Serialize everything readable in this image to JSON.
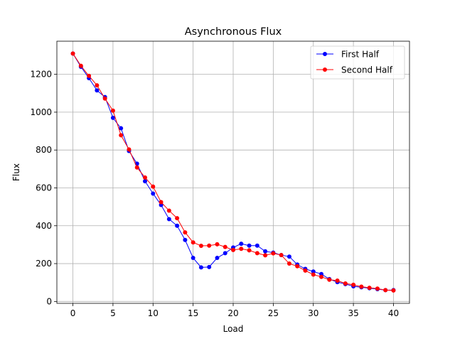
{
  "chart_data": {
    "type": "line",
    "title": "Asynchronous Flux",
    "xlabel": "Load",
    "ylabel": "Flux",
    "xlim": [
      -2,
      42
    ],
    "ylim": [
      -10,
      1375
    ],
    "xticks": [
      0,
      5,
      10,
      15,
      20,
      25,
      30,
      35,
      40
    ],
    "yticks": [
      0,
      200,
      400,
      600,
      800,
      1000,
      1200
    ],
    "grid": true,
    "legend_position": "top-right",
    "x": [
      0,
      1,
      2,
      3,
      4,
      5,
      6,
      7,
      8,
      9,
      10,
      11,
      12,
      13,
      14,
      15,
      16,
      17,
      18,
      19,
      20,
      21,
      22,
      23,
      24,
      25,
      26,
      27,
      28,
      29,
      30,
      31,
      32,
      33,
      34,
      35,
      36,
      37,
      38,
      39,
      40
    ],
    "series": [
      {
        "name": "First Half",
        "color": "#0000ff",
        "marker": "circle",
        "values": [
          1310,
          1240,
          1180,
          1115,
          1080,
          970,
          915,
          795,
          728,
          635,
          570,
          510,
          435,
          400,
          325,
          230,
          180,
          182,
          230,
          255,
          285,
          305,
          295,
          295,
          265,
          258,
          245,
          237,
          195,
          172,
          158,
          145,
          118,
          102,
          92,
          80,
          75,
          70,
          65,
          60,
          60
        ]
      },
      {
        "name": "Second Half",
        "color": "#ff0000",
        "marker": "circle",
        "values": [
          1310,
          1245,
          1192,
          1142,
          1072,
          1008,
          878,
          803,
          708,
          655,
          607,
          525,
          480,
          440,
          365,
          312,
          294,
          295,
          302,
          288,
          272,
          278,
          270,
          255,
          244,
          254,
          245,
          200,
          186,
          163,
          142,
          130,
          115,
          110,
          95,
          88,
          78,
          72,
          68,
          60,
          58
        ]
      }
    ]
  }
}
